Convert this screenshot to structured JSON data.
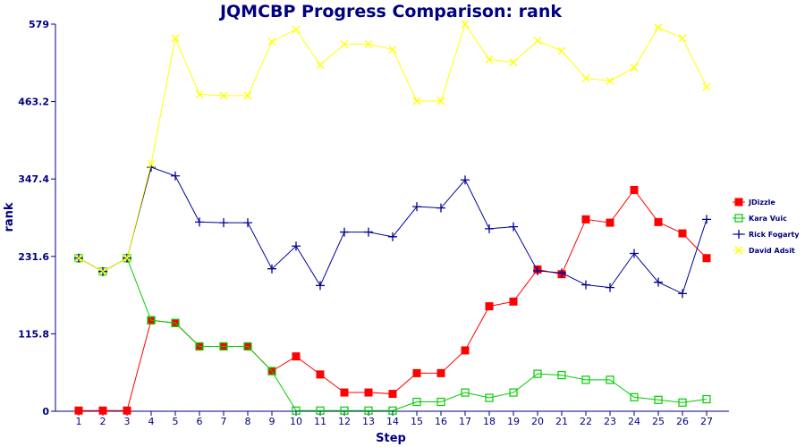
{
  "chart_data": {
    "type": "line",
    "title": "JQMCBP Progress Comparison: rank",
    "xlabel": "Step",
    "ylabel": "rank",
    "x": [
      1,
      2,
      3,
      4,
      5,
      6,
      7,
      8,
      9,
      10,
      11,
      12,
      13,
      14,
      15,
      16,
      17,
      18,
      19,
      20,
      21,
      22,
      23,
      24,
      25,
      26,
      27
    ],
    "ylim": [
      0,
      579
    ],
    "yticks": [
      "0",
      "115.8",
      "231.6",
      "347.4",
      "463.2",
      "579"
    ],
    "grid": false,
    "legend": "right",
    "series": [
      {
        "name": "JDizzle",
        "color": "#ff0000",
        "marker": "filled-square",
        "values": [
          1,
          1,
          1,
          136,
          132,
          97,
          97,
          97,
          60,
          82,
          55,
          28,
          28,
          26,
          57,
          57,
          91,
          157,
          164,
          212,
          205,
          287,
          282,
          331,
          283,
          266,
          229
        ]
      },
      {
        "name": "Kara Vuic",
        "color": "#00cc00",
        "marker": "hollow-square",
        "values": [
          229,
          209,
          229,
          136,
          132,
          97,
          97,
          97,
          60,
          1,
          1,
          1,
          1,
          1,
          14,
          14,
          28,
          20,
          28,
          56,
          54,
          47,
          47,
          21,
          17,
          13,
          18
        ]
      },
      {
        "name": "Rick Fogarty",
        "color": "#000099",
        "marker": "plus",
        "values": [
          229,
          209,
          229,
          365,
          352,
          283,
          282,
          282,
          213,
          247,
          188,
          268,
          268,
          261,
          306,
          304,
          346,
          273,
          276,
          210,
          207,
          189,
          185,
          236,
          193,
          176,
          287
        ]
      },
      {
        "name": "David Adsit",
        "color": "#ffff00",
        "marker": "x",
        "values": [
          229,
          209,
          229,
          370,
          558,
          474,
          472,
          472,
          553,
          571,
          518,
          549,
          549,
          541,
          464,
          464,
          579,
          526,
          522,
          554,
          539,
          498,
          494,
          514,
          574,
          558,
          485
        ]
      }
    ]
  }
}
